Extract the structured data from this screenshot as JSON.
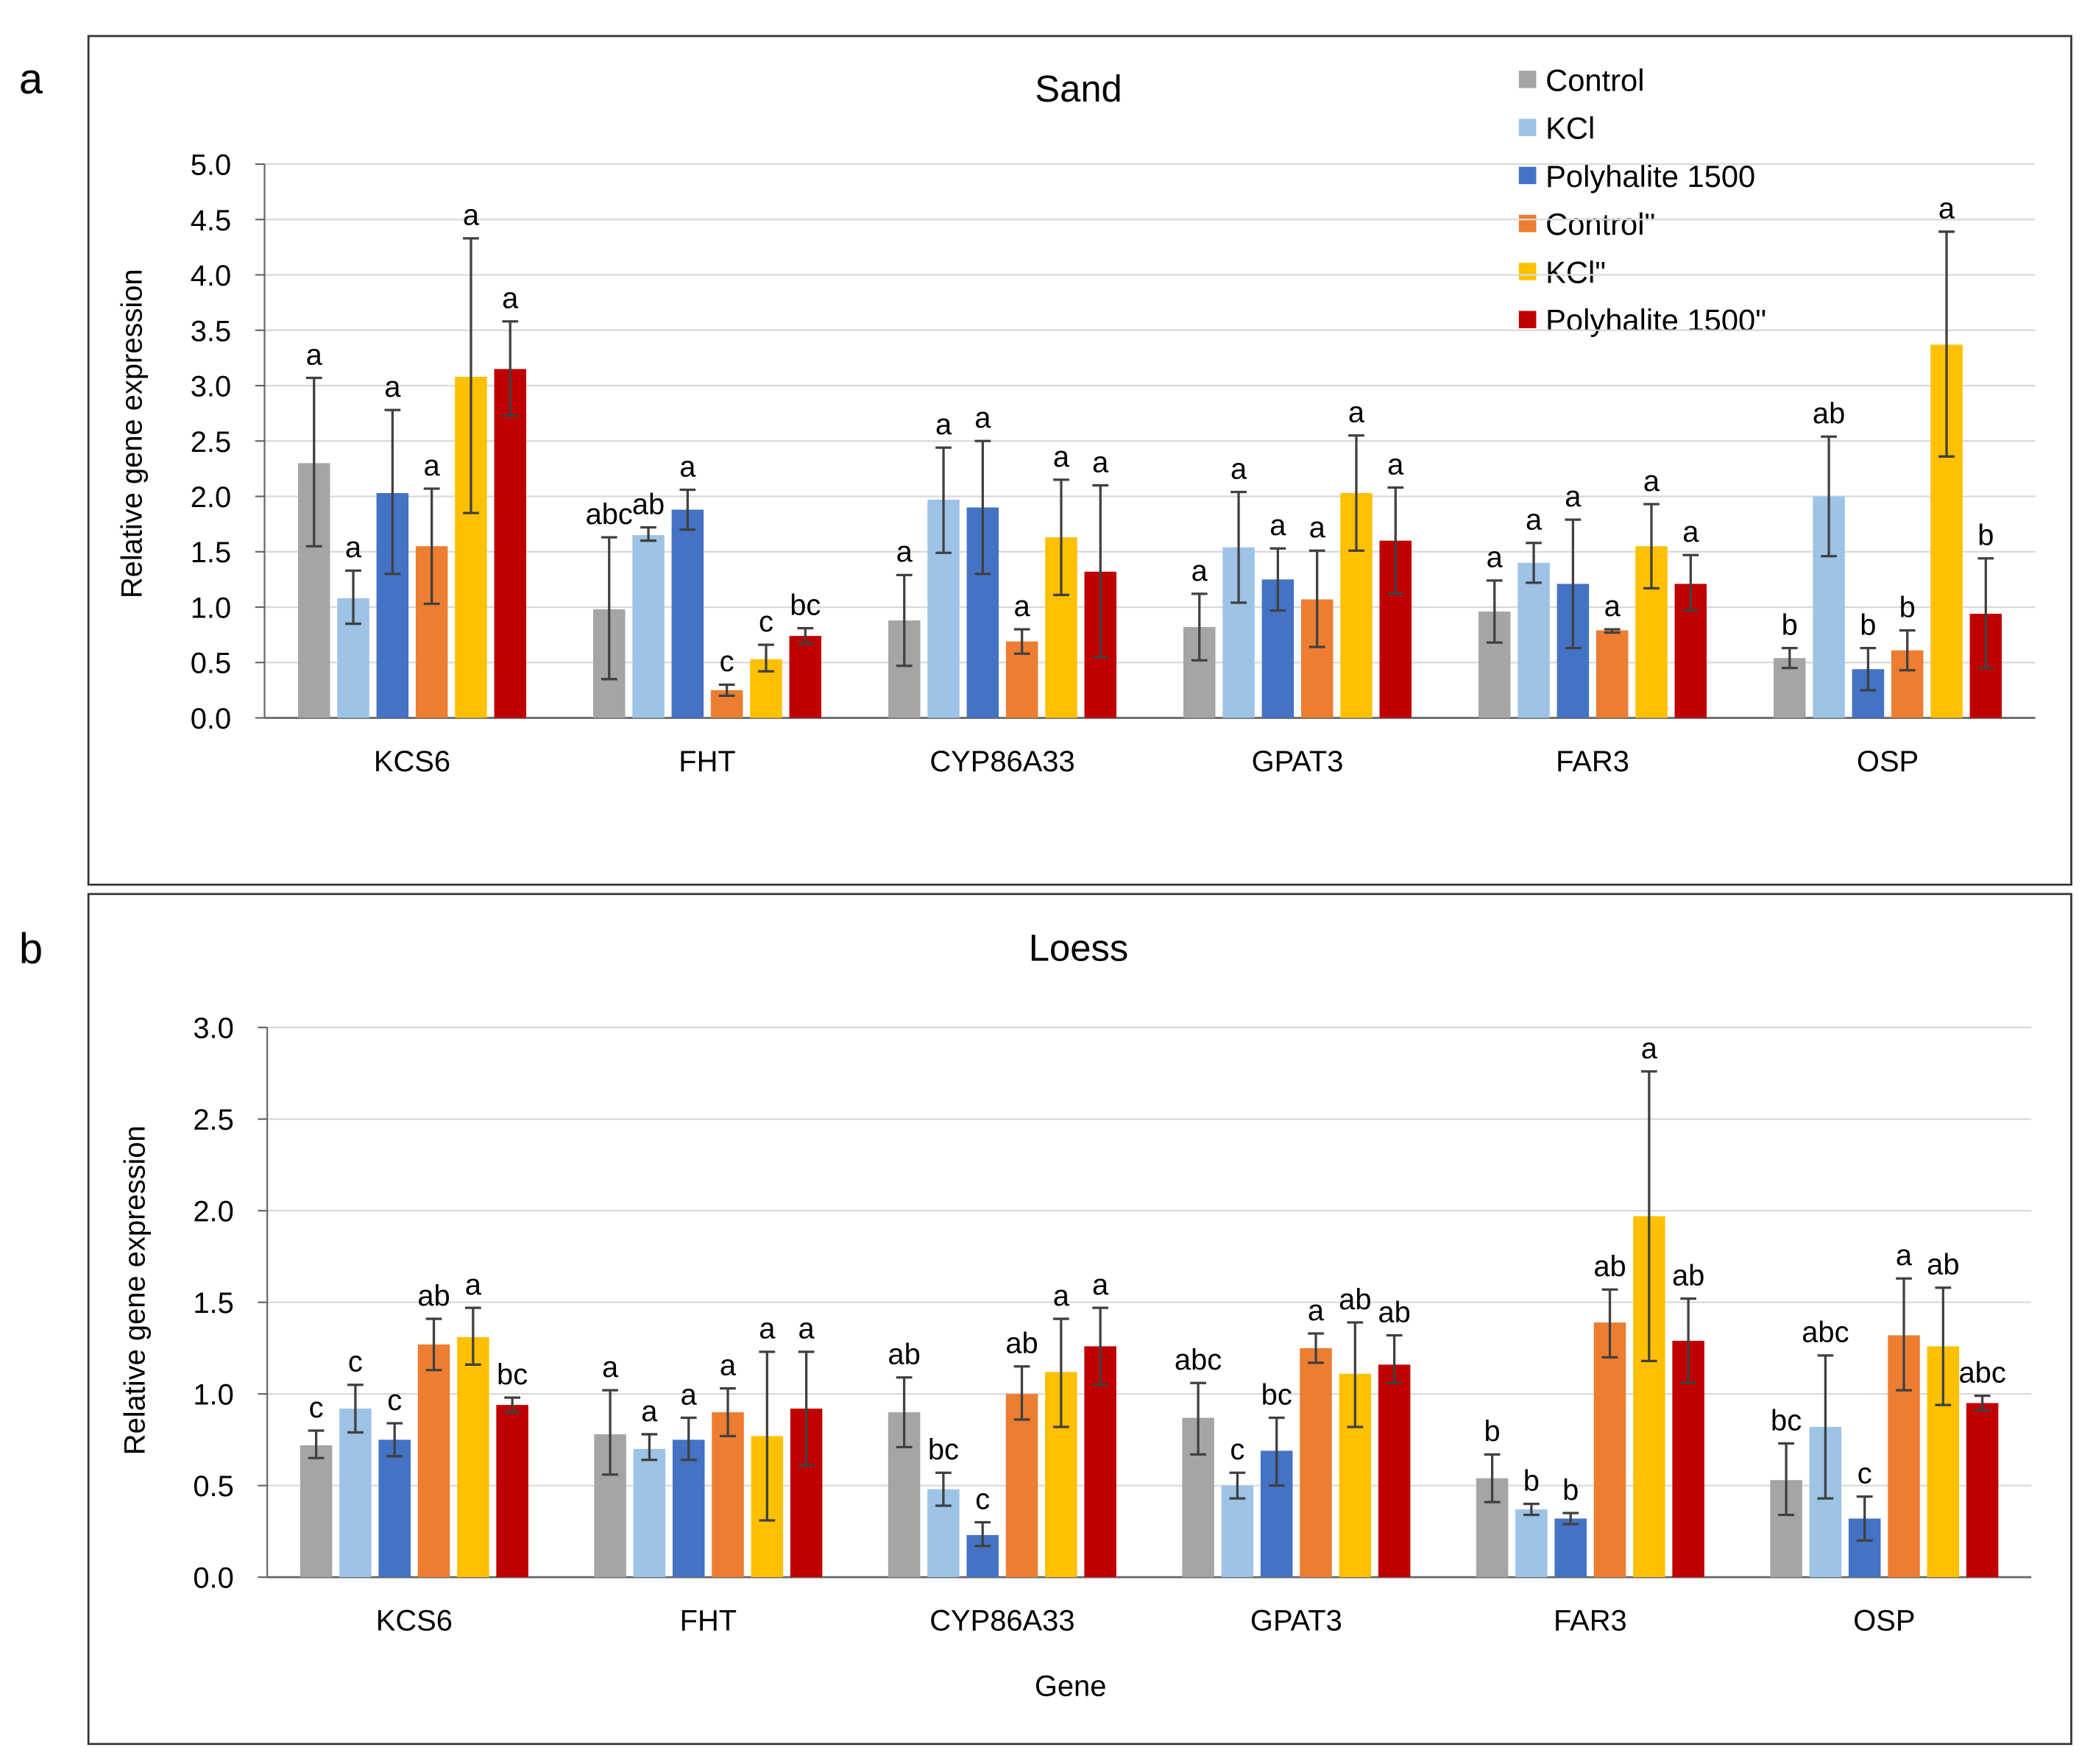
{
  "panel_labels": [
    "a",
    "b"
  ],
  "colors": [
    "#A5A5A5",
    "#9DC3E6",
    "#4472C4",
    "#ED7D31",
    "#FFC000",
    "#C00000"
  ],
  "legend": [
    "Control",
    "KCl",
    "Polyhalite 1500",
    "Control\"",
    "KCl\"",
    "Polyhalite 1500\""
  ],
  "chart_data": [
    {
      "type": "bar",
      "title": "Sand",
      "xlabel": "",
      "ylabel": "Relative gene expression",
      "ylim": [
        0,
        5
      ],
      "yticks": [
        "0.0",
        "0.5",
        "1.0",
        "1.5",
        "2.0",
        "2.5",
        "3.0",
        "3.5",
        "4.0",
        "4.5",
        "5.0"
      ],
      "ystep": 0.5,
      "legend_position": "top-right",
      "categories": [
        "KCS6",
        "FHT",
        "CYP86A33",
        "GPAT3",
        "FAR3",
        "OSP"
      ],
      "series": [
        {
          "name": "Control",
          "values": [
            2.3,
            0.98,
            0.88,
            0.82,
            0.96,
            0.54
          ],
          "err_low": [
            1.55,
            0.35,
            0.47,
            0.52,
            0.68,
            0.45
          ],
          "err_high": [
            3.07,
            1.63,
            1.29,
            1.12,
            1.24,
            0.63
          ],
          "letters": [
            "a",
            "abc",
            "a",
            "a",
            "a",
            "b"
          ]
        },
        {
          "name": "KCl",
          "values": [
            1.08,
            1.65,
            1.97,
            1.54,
            1.4,
            2.0
          ],
          "err_low": [
            0.85,
            1.6,
            1.49,
            1.04,
            1.22,
            1.46
          ],
          "err_high": [
            1.33,
            1.72,
            2.44,
            2.04,
            1.58,
            2.54
          ],
          "letters": [
            "a",
            "ab",
            "a",
            "a",
            "a",
            "ab"
          ]
        },
        {
          "name": "Polyhalite 1500",
          "values": [
            2.03,
            1.88,
            1.9,
            1.25,
            1.21,
            0.44
          ],
          "err_low": [
            1.3,
            1.7,
            1.3,
            0.97,
            0.63,
            0.25
          ],
          "err_high": [
            2.78,
            2.06,
            2.5,
            1.53,
            1.79,
            0.63
          ],
          "letters": [
            "a",
            "a",
            "a",
            "a",
            "a",
            "b"
          ]
        },
        {
          "name": "Control\"",
          "values": [
            1.55,
            0.25,
            0.69,
            1.07,
            0.79,
            0.61
          ],
          "err_low": [
            1.03,
            0.2,
            0.58,
            0.64,
            0.77,
            0.43
          ],
          "err_high": [
            2.07,
            0.3,
            0.8,
            1.51,
            0.8,
            0.79
          ],
          "letters": [
            "a",
            "c",
            "a",
            "a",
            "a",
            "b"
          ]
        },
        {
          "name": "KCl\"",
          "values": [
            3.08,
            0.53,
            1.63,
            2.03,
            1.55,
            3.37
          ],
          "err_low": [
            1.85,
            0.42,
            1.11,
            1.51,
            1.17,
            2.36
          ],
          "err_high": [
            4.33,
            0.66,
            2.15,
            2.55,
            1.93,
            4.39
          ],
          "letters": [
            "a",
            "c",
            "a",
            "a",
            "a",
            "a"
          ]
        },
        {
          "name": "Polyhalite 1500\"",
          "values": [
            3.15,
            0.74,
            1.32,
            1.6,
            1.21,
            0.94
          ],
          "err_low": [
            2.73,
            0.67,
            0.55,
            1.12,
            0.97,
            0.45
          ],
          "err_high": [
            3.58,
            0.81,
            2.1,
            2.08,
            1.47,
            1.44
          ],
          "letters": [
            "a",
            "bc",
            "a",
            "a",
            "a",
            "b"
          ]
        }
      ]
    },
    {
      "type": "bar",
      "title": "Loess",
      "xlabel": "Gene",
      "ylabel": "Relative gene expression",
      "ylim": [
        0,
        3
      ],
      "yticks": [
        "0.0",
        "0.5",
        "1.0",
        "1.5",
        "2.0",
        "2.5",
        "3.0"
      ],
      "ystep": 0.5,
      "categories": [
        "KCS6",
        "FHT",
        "CYP86A33",
        "GPAT3",
        "FAR3",
        "OSP"
      ],
      "series": [
        {
          "name": "Control",
          "values": [
            0.72,
            0.78,
            0.9,
            0.87,
            0.54,
            0.53
          ],
          "err_low": [
            0.65,
            0.56,
            0.71,
            0.67,
            0.41,
            0.34
          ],
          "err_high": [
            0.8,
            1.02,
            1.09,
            1.06,
            0.67,
            0.73
          ],
          "letters": [
            "c",
            "a",
            "ab",
            "abc",
            "b",
            "bc"
          ]
        },
        {
          "name": "KCl",
          "values": [
            0.92,
            0.7,
            0.48,
            0.5,
            0.37,
            0.82
          ],
          "err_low": [
            0.79,
            0.64,
            0.39,
            0.43,
            0.34,
            0.43
          ],
          "err_high": [
            1.05,
            0.78,
            0.57,
            0.57,
            0.4,
            1.21
          ],
          "letters": [
            "c",
            "a",
            "bc",
            "c",
            "b",
            "abc"
          ]
        },
        {
          "name": "Polyhalite 1500",
          "values": [
            0.75,
            0.75,
            0.23,
            0.69,
            0.32,
            0.32
          ],
          "err_low": [
            0.66,
            0.64,
            0.17,
            0.5,
            0.29,
            0.2
          ],
          "err_high": [
            0.84,
            0.87,
            0.3,
            0.87,
            0.35,
            0.44
          ],
          "letters": [
            "c",
            "a",
            "c",
            "bc",
            "b",
            "c"
          ]
        },
        {
          "name": "Control\"",
          "values": [
            1.27,
            0.9,
            1.0,
            1.25,
            1.39,
            1.32
          ],
          "err_low": [
            1.13,
            0.77,
            0.86,
            1.17,
            1.2,
            1.02
          ],
          "err_high": [
            1.41,
            1.03,
            1.15,
            1.33,
            1.57,
            1.63
          ],
          "letters": [
            "ab",
            "a",
            "ab",
            "a",
            "ab",
            "a"
          ]
        },
        {
          "name": "KCl\"",
          "values": [
            1.31,
            0.77,
            1.12,
            1.11,
            1.97,
            1.26
          ],
          "err_low": [
            1.16,
            0.31,
            0.82,
            0.82,
            1.18,
            0.94
          ],
          "err_high": [
            1.47,
            1.23,
            1.41,
            1.39,
            2.76,
            1.58
          ],
          "letters": [
            "a",
            "a",
            "a",
            "ab",
            "a",
            "ab"
          ]
        },
        {
          "name": "Polyhalite 1500\"",
          "values": [
            0.94,
            0.92,
            1.26,
            1.16,
            1.29,
            0.95
          ],
          "err_low": [
            0.9,
            0.61,
            1.05,
            1.06,
            1.06,
            0.91
          ],
          "err_high": [
            0.98,
            1.23,
            1.47,
            1.32,
            1.52,
            0.99
          ],
          "letters": [
            "bc",
            "a",
            "a",
            "ab",
            "ab",
            "abc"
          ]
        }
      ]
    }
  ]
}
